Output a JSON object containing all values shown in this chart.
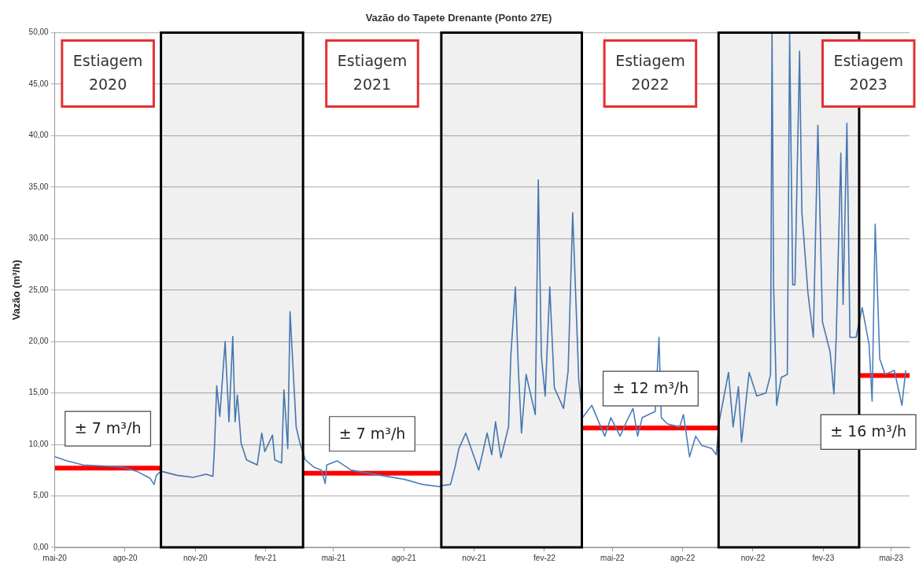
{
  "chart_data": {
    "type": "line",
    "title": "Vazão do Tapete Drenante (Ponto 27E)",
    "ylabel": "Vazão (m³/h)",
    "series": [
      {
        "color": "#4a7ebb",
        "x": [
          "2020-05-01",
          "2020-05-17",
          "2020-06-07",
          "2020-07-29",
          "2020-08-16",
          "2020-09-03",
          "2020-09-08",
          "2020-09-11",
          "2020-09-17",
          "2020-10-08",
          "2020-10-29",
          "2020-11-15",
          "2020-11-24",
          "2020-11-26",
          "2020-11-29",
          "2020-12-03",
          "2020-12-10",
          "2020-12-15",
          "2020-12-20",
          "2020-12-23",
          "2020-12-26",
          "2020-12-31",
          "2021-01-07",
          "2021-01-21",
          "2021-01-27",
          "2021-01-31",
          "2021-02-10",
          "2021-02-13",
          "2021-02-22",
          "2021-02-25",
          "2021-03-02",
          "2021-03-05",
          "2021-03-13",
          "2021-03-18",
          "2021-03-25",
          "2021-04-05",
          "2021-04-15",
          "2021-04-20",
          "2021-04-22",
          "2021-05-06",
          "2021-05-24",
          "2021-07-01",
          "2021-08-02",
          "2021-08-26",
          "2021-09-16",
          "2021-09-19",
          "2021-10-01",
          "2021-10-07",
          "2021-10-12",
          "2021-10-21",
          "2021-11-07",
          "2021-11-18",
          "2021-11-24",
          "2021-11-29",
          "2021-12-06",
          "2021-12-16",
          "2021-12-19",
          "2021-12-25",
          "2021-12-29",
          "2022-01-02",
          "2022-01-08",
          "2022-01-20",
          "2022-01-24",
          "2022-01-28",
          "2022-02-02",
          "2022-02-08",
          "2022-02-14",
          "2022-02-26",
          "2022-03-04",
          "2022-03-10",
          "2022-03-18",
          "2022-03-23",
          "2022-04-04",
          "2022-04-21",
          "2022-04-29",
          "2022-05-11",
          "2022-05-20",
          "2022-05-28",
          "2022-06-03",
          "2022-06-09",
          "2022-06-26",
          "2022-07-01",
          "2022-07-04",
          "2022-07-12",
          "2022-07-28",
          "2022-08-02",
          "2022-08-10",
          "2022-08-18",
          "2022-08-26",
          "2022-09-08",
          "2022-09-14",
          "2022-09-18",
          "2022-09-30",
          "2022-10-06",
          "2022-10-13",
          "2022-10-17",
          "2022-10-27",
          "2022-11-06",
          "2022-11-18",
          "2022-11-24",
          "2022-11-26",
          "2022-11-28",
          "2022-12-02",
          "2022-12-08",
          "2022-12-16",
          "2022-12-19",
          "2022-12-23",
          "2022-12-26",
          "2023-01-01",
          "2023-01-04",
          "2023-01-12",
          "2023-01-19",
          "2023-01-25",
          "2023-01-31",
          "2023-02-10",
          "2023-02-15",
          "2023-02-18",
          "2023-02-24",
          "2023-02-27",
          "2023-03-04",
          "2023-03-08",
          "2023-03-16",
          "2023-03-24",
          "2023-04-02",
          "2023-04-06",
          "2023-04-10",
          "2023-04-16",
          "2023-04-23",
          "2023-05-05",
          "2023-05-15",
          "2023-05-20"
        ],
        "values": [
          8.8,
          8.4,
          8.0,
          7.8,
          7.4,
          6.7,
          6.1,
          7.0,
          7.4,
          7.0,
          6.8,
          7.1,
          6.9,
          9.6,
          15.7,
          12.7,
          20.0,
          12.2,
          20.5,
          12.2,
          14.8,
          10.1,
          8.5,
          8.0,
          11.1,
          9.3,
          10.9,
          8.5,
          8.2,
          15.3,
          9.6,
          22.9,
          11.7,
          10.1,
          8.5,
          7.8,
          7.5,
          6.2,
          8.0,
          8.4,
          7.5,
          7.0,
          6.6,
          6.1,
          5.9,
          6.0,
          6.1,
          7.8,
          9.6,
          11.1,
          7.5,
          11.1,
          9.0,
          12.2,
          8.7,
          11.7,
          18.6,
          25.3,
          17.1,
          11.1,
          16.8,
          12.9,
          35.7,
          18.6,
          14.7,
          25.3,
          15.5,
          13.5,
          17.1,
          32.5,
          16.2,
          12.6,
          13.8,
          10.8,
          12.6,
          10.8,
          12.3,
          13.5,
          10.8,
          12.6,
          13.2,
          20.4,
          12.6,
          12.0,
          11.7,
          12.9,
          8.8,
          10.8,
          9.9,
          9.6,
          9.0,
          12.3,
          17.0,
          11.7,
          15.6,
          10.2,
          17.0,
          14.7,
          15.0,
          16.8,
          50,
          25.5,
          13.8,
          16.5,
          16.8,
          50,
          25.5,
          25.5,
          48.2,
          32.6,
          24.7,
          20.4,
          41.0,
          21.9,
          19.0,
          14.9,
          20.4,
          38.3,
          23.6,
          41.2,
          20.4,
          20.4,
          23.3,
          19.7,
          14.2,
          31.4,
          18.3,
          16.8,
          17.2,
          13.8,
          17.2
        ]
      },
      {
        "type": "line",
        "color": "#ff0000",
        "x": [
          "2020-05-01",
          "2020-09-17"
        ],
        "values": [
          7.7,
          7.7
        ]
      },
      {
        "type": "line",
        "color": "#ff0000",
        "x": [
          "2021-03-22",
          "2021-09-19"
        ],
        "values": [
          7.2,
          7.2
        ]
      },
      {
        "type": "line",
        "color": "#ff0000",
        "x": [
          "2022-03-22",
          "2022-09-18"
        ],
        "values": [
          11.6,
          11.6
        ]
      },
      {
        "type": "line",
        "color": "#ff0000",
        "x": [
          "2023-03-20",
          "2023-05-25"
        ],
        "values": [
          16.7,
          16.7
        ]
      }
    ],
    "bands": [
      {
        "axis": "x",
        "from": "2020-09-17",
        "to": "2021-03-22",
        "color": "#000000"
      },
      {
        "axis": "x",
        "from": "2021-09-19",
        "to": "2022-03-22",
        "color": "#000000"
      },
      {
        "axis": "x",
        "from": "2022-09-17",
        "to": "2023-03-20",
        "color": "#000000"
      }
    ],
    "annotations": [
      "Estiagem 2020",
      "Estiagem 2021",
      "Estiagem 2022",
      "Estiagem 2023",
      "± 7 m³/h",
      "± 7 m³/h",
      "± 12 m³/h",
      "± 16 m³/h"
    ],
    "xlim": [
      "2020-05-01",
      "2023-05-25"
    ],
    "xticks": [
      {
        "value": "2020-05-01",
        "label": "mai-20"
      },
      {
        "value": "2020-08-01",
        "label": "ago-20"
      },
      {
        "value": "2020-11-01",
        "label": "nov-20"
      },
      {
        "value": "2021-02-01",
        "label": "fev-21"
      },
      {
        "value": "2021-05-01",
        "label": "mai-21"
      },
      {
        "value": "2021-08-01",
        "label": "ago-21"
      },
      {
        "value": "2021-11-01",
        "label": "nov-21"
      },
      {
        "value": "2022-02-01",
        "label": "fev-22"
      },
      {
        "value": "2022-05-01",
        "label": "mai-22"
      },
      {
        "value": "2022-08-01",
        "label": "ago-22"
      },
      {
        "value": "2022-11-01",
        "label": "nov-22"
      },
      {
        "value": "2023-02-01",
        "label": "fev-23"
      },
      {
        "value": "2023-05-01",
        "label": "mai-23"
      }
    ],
    "ylim": [
      0,
      50
    ],
    "yticks": [
      {
        "value": 0,
        "label": "0,00"
      },
      {
        "value": 5,
        "label": "5,00"
      },
      {
        "value": 10,
        "label": "10,00"
      },
      {
        "value": 15,
        "label": "15,00"
      },
      {
        "value": 20,
        "label": "20,00"
      },
      {
        "value": 25,
        "label": "25,00"
      },
      {
        "value": 30,
        "label": "30,00"
      },
      {
        "value": 35,
        "label": "35,00"
      },
      {
        "value": 40,
        "label": "40,00"
      },
      {
        "value": 45,
        "label": "45,00"
      },
      {
        "value": 50,
        "label": "50,00"
      }
    ],
    "grid": "y",
    "legend": false,
    "marker": "none",
    "line_style": "solid"
  }
}
